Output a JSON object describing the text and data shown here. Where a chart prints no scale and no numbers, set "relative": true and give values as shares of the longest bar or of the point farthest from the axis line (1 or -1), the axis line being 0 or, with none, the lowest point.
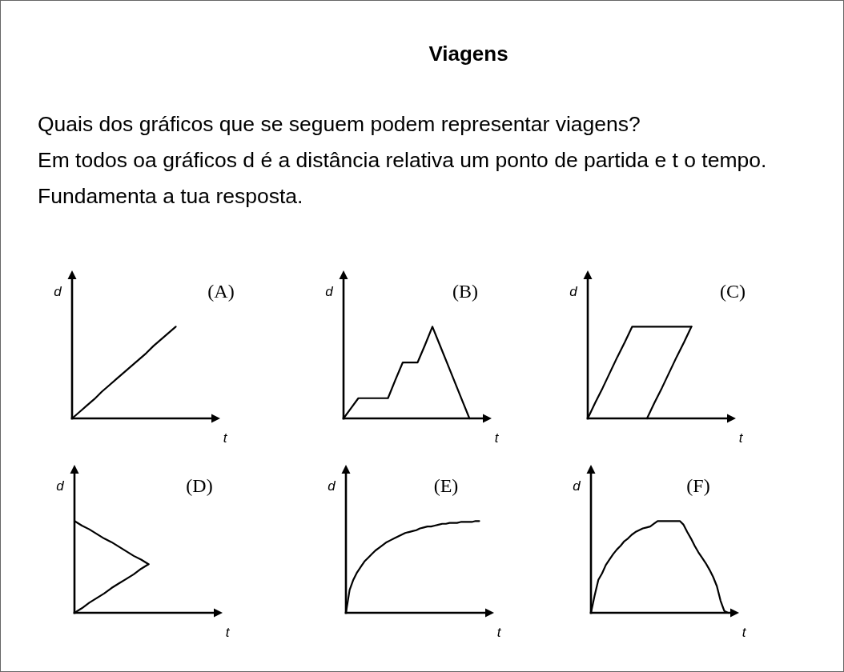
{
  "chart_data": [
    {
      "type": "other",
      "title": "Viagens",
      "annotations": [
        "Quais dos gráficos que se seguem podem representar viagens?",
        "Em todos oa gráficos d é a distância relativa um ponto de partida e t o tempo.",
        "Fundamenta a tua resposta."
      ]
    },
    {
      "type": "line",
      "title": "(A)",
      "xlabel": "t",
      "ylabel": "d",
      "relative": true,
      "color": "#000000",
      "categories": [
        null,
        null,
        null,
        null,
        null,
        null,
        null,
        null,
        null,
        null,
        null,
        null,
        null,
        null,
        null,
        null,
        null,
        null,
        null,
        null,
        null
      ],
      "values": [
        0,
        0.07,
        0.14,
        0.21,
        0.29,
        0.36,
        0.43,
        0.5,
        0.57,
        0.64,
        0.71,
        0.79,
        0.86,
        0.93,
        1,
        null,
        null,
        null,
        null,
        null,
        null
      ]
    },
    {
      "type": "line",
      "title": "(B)",
      "xlabel": "t",
      "ylabel": "d",
      "relative": true,
      "color": "#000000",
      "categories": [
        null,
        null,
        null,
        null,
        null,
        null,
        null,
        null,
        null,
        null,
        null,
        null,
        null,
        null,
        null,
        null,
        null,
        null,
        null,
        null,
        null
      ],
      "values": [
        0,
        0.11,
        0.22,
        0.22,
        0.22,
        0.22,
        0.22,
        0.42,
        0.61,
        0.61,
        0.61,
        0.8,
        1,
        0.8,
        0.6,
        0.4,
        0.2,
        0,
        null,
        null,
        null
      ]
    },
    {
      "type": "line",
      "title": "(C)",
      "xlabel": "t",
      "ylabel": "d",
      "relative": true,
      "categories": [
        null,
        null,
        null,
        null,
        null,
        null,
        null,
        null,
        null,
        null,
        null,
        null,
        null,
        null,
        null,
        null,
        null,
        null,
        null,
        null,
        null
      ],
      "series": [
        {
          "color": "#000000",
          "values": [
            0,
            0.17,
            0.33,
            0.5,
            0.67,
            0.83,
            1,
            1,
            1,
            1,
            1,
            1,
            1,
            1,
            1,
            null,
            null,
            null,
            null,
            null,
            null
          ]
        },
        {
          "color": "#000000",
          "values": [
            null,
            null,
            null,
            null,
            null,
            null,
            null,
            null,
            0,
            0.17,
            0.33,
            0.5,
            0.67,
            0.83,
            1,
            null,
            null,
            null,
            null,
            null,
            null
          ]
        }
      ]
    },
    {
      "type": "line",
      "title": "(D)",
      "xlabel": "t",
      "ylabel": "d",
      "relative": true,
      "categories": [
        null,
        null,
        null,
        null,
        null,
        null,
        null,
        null,
        null,
        null,
        null,
        null,
        null,
        null,
        null,
        null,
        null,
        null,
        null,
        null,
        null
      ],
      "series": [
        {
          "color": "#000000",
          "values": [
            0,
            0.05,
            0.11,
            0.16,
            0.21,
            0.27,
            0.32,
            0.37,
            0.42,
            0.48,
            0.53,
            null,
            null,
            null,
            null,
            null,
            null,
            null,
            null,
            null,
            null
          ]
        },
        {
          "color": "#000000",
          "values": [
            1,
            0.95,
            0.91,
            0.86,
            0.81,
            0.77,
            0.72,
            0.67,
            0.62,
            0.58,
            0.53,
            null,
            null,
            null,
            null,
            null,
            null,
            null,
            null,
            null,
            null
          ]
        }
      ]
    },
    {
      "type": "line",
      "title": "(E)",
      "xlabel": "t",
      "ylabel": "d",
      "relative": true,
      "color": "#000000",
      "categories": [
        null,
        null,
        null,
        null,
        null,
        null,
        null,
        null,
        null,
        null,
        null,
        null,
        null,
        null,
        null,
        null,
        null,
        null,
        null,
        null,
        null,
        null,
        null,
        null,
        null,
        null,
        null,
        null,
        null,
        null,
        null,
        null,
        null,
        null,
        null,
        null,
        null,
        null,
        null,
        null,
        null
      ],
      "values": [
        0,
        0.25,
        0.36,
        0.44,
        0.5,
        0.56,
        0.6,
        0.64,
        0.68,
        0.71,
        0.74,
        0.77,
        0.79,
        0.81,
        0.83,
        0.85,
        0.87,
        0.88,
        0.89,
        0.9,
        0.92,
        0.93,
        0.94,
        0.94,
        0.95,
        0.96,
        0.97,
        0.97,
        0.98,
        0.98,
        0.98,
        0.99,
        0.99,
        0.99,
        0.99,
        1,
        1,
        null,
        null,
        null,
        null
      ]
    },
    {
      "type": "line",
      "title": "(F)",
      "xlabel": "t",
      "ylabel": "d",
      "relative": true,
      "color": "#000000",
      "categories": [
        null,
        null,
        null,
        null,
        null,
        null,
        null,
        null,
        null,
        null,
        null,
        null,
        null,
        null,
        null,
        null,
        null,
        null,
        null,
        null,
        null,
        null,
        null,
        null,
        null,
        null,
        null,
        null,
        null,
        null,
        null,
        null,
        null,
        null,
        null,
        null,
        null,
        null,
        null,
        null,
        null
      ],
      "values": [
        0,
        0.19,
        0.36,
        0.43,
        0.52,
        0.58,
        0.64,
        0.69,
        0.73,
        0.78,
        0.81,
        0.85,
        0.88,
        0.9,
        0.92,
        0.93,
        0.94,
        0.97,
        1,
        1,
        1,
        1,
        1,
        1,
        1,
        0.96,
        0.88,
        0.81,
        0.73,
        0.66,
        0.6,
        0.54,
        0.47,
        0.39,
        0.29,
        0.13,
        0.02,
        0,
        null,
        null,
        null
      ]
    }
  ]
}
